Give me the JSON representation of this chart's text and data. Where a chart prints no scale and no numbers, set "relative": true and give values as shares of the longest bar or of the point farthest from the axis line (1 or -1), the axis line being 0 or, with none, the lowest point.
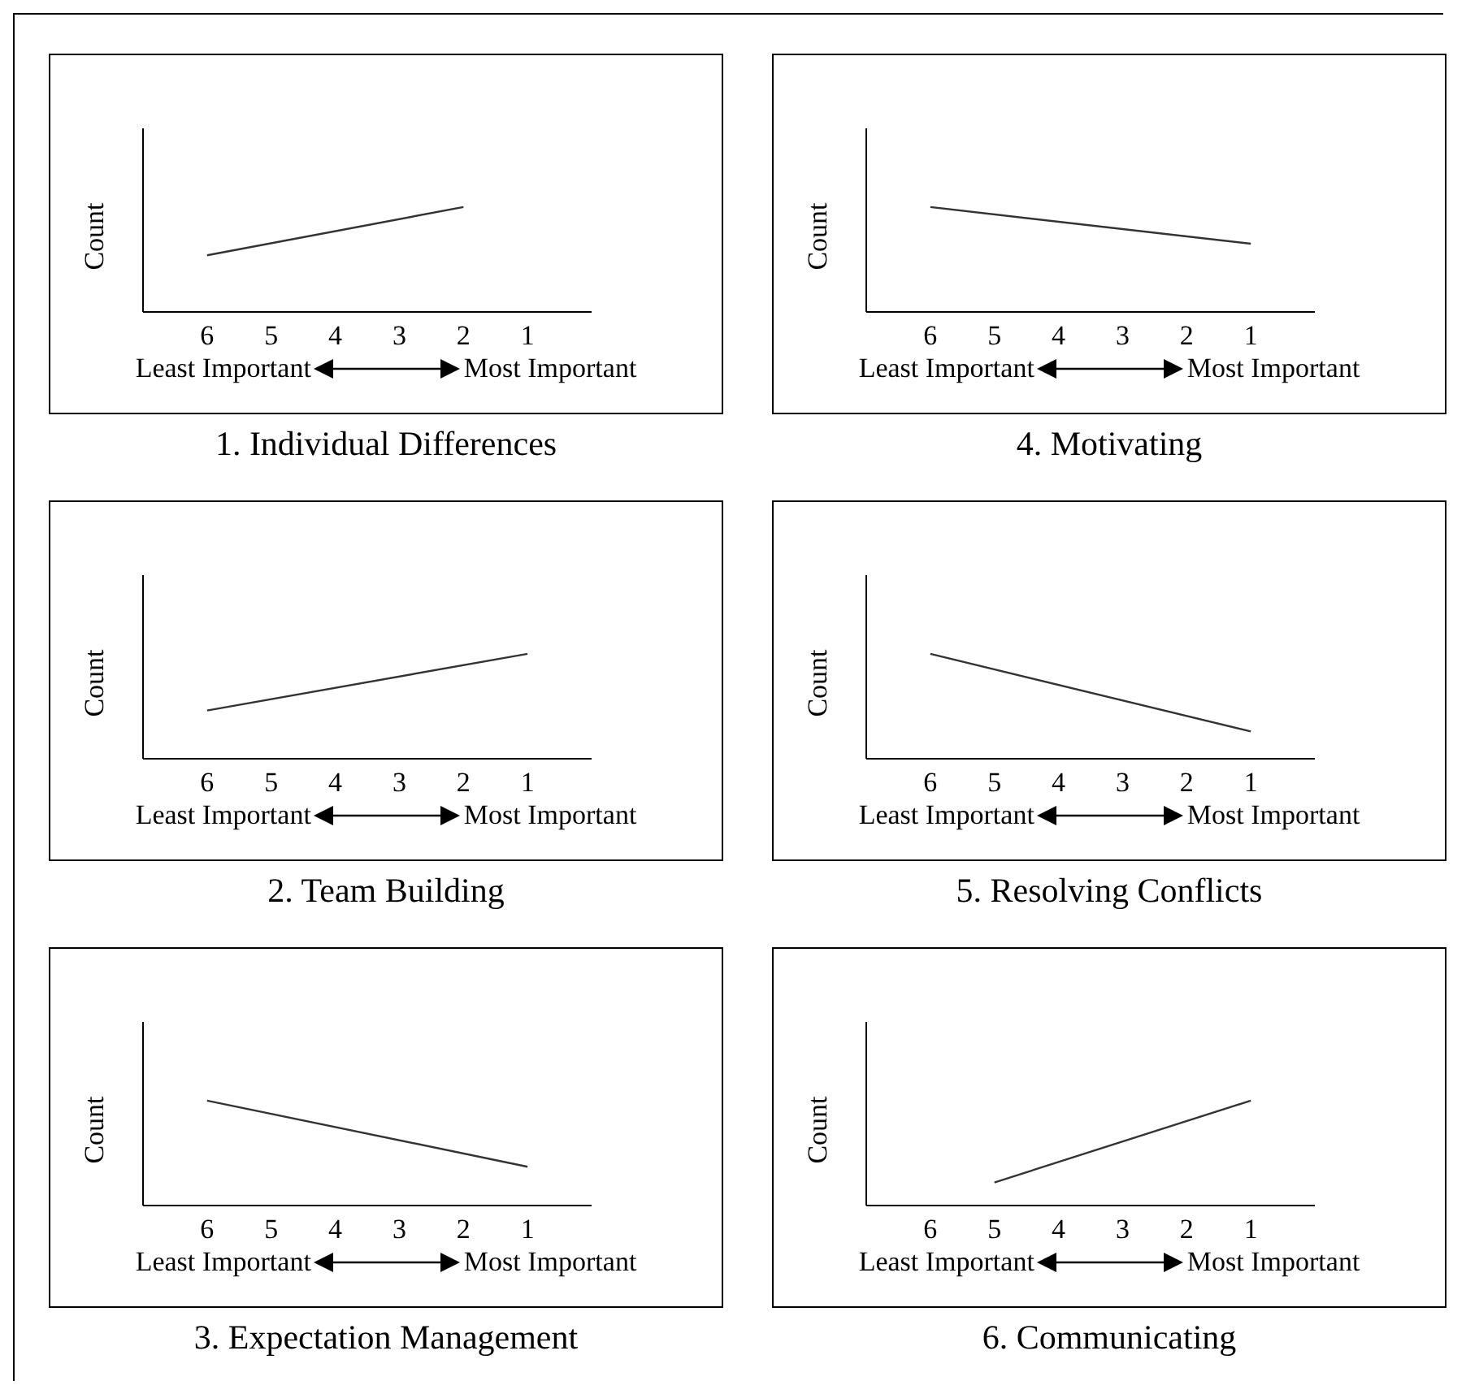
{
  "chart_data": [
    {
      "type": "line",
      "title": "1. Individual Differences",
      "ylabel": "Count",
      "categories": [
        "6",
        "5",
        "4",
        "3",
        "2",
        "1"
      ],
      "values": [
        0.54,
        null,
        null,
        null,
        1,
        null
      ],
      "relative": true,
      "color": "#333333",
      "marker": "none",
      "annotations": [
        "Least Important",
        "Most Important"
      ]
    },
    {
      "type": "line",
      "title": "4. Motivating",
      "ylabel": "Count",
      "categories": [
        "6",
        "5",
        "4",
        "3",
        "2",
        "1"
      ],
      "values": [
        1,
        null,
        null,
        null,
        null,
        0.65
      ],
      "relative": true,
      "color": "#333333",
      "marker": "none",
      "annotations": [
        "Least Important",
        "Most Important"
      ]
    },
    {
      "type": "line",
      "title": "2. Team Building",
      "ylabel": "Count",
      "categories": [
        "6",
        "5",
        "4",
        "3",
        "2",
        "1"
      ],
      "values": [
        0.46,
        null,
        null,
        null,
        null,
        1
      ],
      "relative": true,
      "color": "#333333",
      "marker": "none",
      "annotations": [
        "Least Important",
        "Most Important"
      ]
    },
    {
      "type": "line",
      "title": "5. Resolving Conflicts",
      "ylabel": "Count",
      "categories": [
        "6",
        "5",
        "4",
        "3",
        "2",
        "1"
      ],
      "values": [
        1,
        null,
        null,
        null,
        null,
        0.26
      ],
      "relative": true,
      "color": "#333333",
      "marker": "none",
      "annotations": [
        "Least Important",
        "Most Important"
      ]
    },
    {
      "type": "line",
      "title": "3. Expectation Management",
      "ylabel": "Count",
      "categories": [
        "6",
        "5",
        "4",
        "3",
        "2",
        "1"
      ],
      "values": [
        1,
        null,
        null,
        null,
        null,
        0.37
      ],
      "relative": true,
      "color": "#333333",
      "marker": "none",
      "annotations": [
        "Least Important",
        "Most Important"
      ]
    },
    {
      "type": "line",
      "title": "6. Communicating",
      "ylabel": "Count",
      "categories": [
        "6",
        "5",
        "4",
        "3",
        "2",
        "1"
      ],
      "values": [
        null,
        0.22,
        null,
        null,
        null,
        1
      ],
      "relative": true,
      "color": "#333333",
      "marker": "none",
      "annotations": [
        "Least Important",
        "Most Important"
      ]
    }
  ]
}
